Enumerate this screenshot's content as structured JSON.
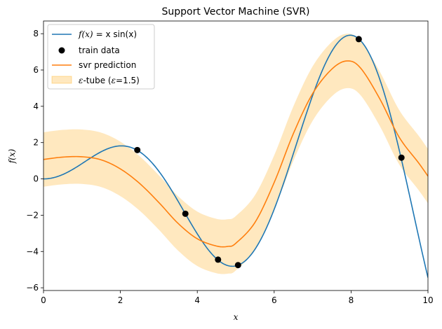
{
  "chart_data": {
    "type": "line",
    "title": "Support Vector Machine (SVR)",
    "xlabel": "x",
    "ylabel": "f(x)",
    "xlim": [
      0,
      10
    ],
    "ylim": [
      -6.15,
      8.7
    ],
    "x_ticks": [
      0,
      2,
      4,
      6,
      8,
      10
    ],
    "y_ticks": [
      -6,
      -4,
      -2,
      0,
      2,
      4,
      6,
      8
    ],
    "x_tick_labels": [
      "0",
      "2",
      "4",
      "6",
      "8",
      "10"
    ],
    "y_tick_labels": [
      "−6",
      "−4",
      "−2",
      "0",
      "2",
      "4",
      "6",
      "8"
    ],
    "grid": false,
    "legend_position": "upper-left",
    "epsilon": 1.5,
    "series": [
      {
        "name": "f(x) = x sin(x)",
        "kind": "line",
        "color": "#1f77b4",
        "function": "x*sin(x)"
      },
      {
        "name": "train data",
        "kind": "scatter",
        "color": "#000000",
        "x": [
          2.44,
          3.69,
          4.54,
          5.06,
          8.2,
          9.31
        ],
        "y": [
          1.59,
          -1.92,
          -4.45,
          -4.75,
          7.7,
          1.17
        ]
      },
      {
        "name": "svr prediction",
        "kind": "line",
        "color": "#ff7f0e",
        "x": [
          0,
          0.5,
          1.0,
          1.5,
          2.0,
          2.5,
          3.0,
          3.5,
          4.0,
          4.5,
          4.8,
          5.0,
          5.5,
          6.0,
          6.5,
          7.0,
          7.5,
          7.9,
          8.25,
          8.75,
          9.25,
          9.75,
          10.0
        ],
        "y": [
          1.07,
          1.2,
          1.22,
          1.05,
          0.55,
          -0.25,
          -1.3,
          -2.45,
          -3.3,
          -3.7,
          -3.72,
          -3.55,
          -2.4,
          -0.2,
          2.5,
          4.7,
          6.05,
          6.5,
          6.1,
          4.4,
          2.3,
          0.9,
          0.15
        ]
      },
      {
        "name": "ε-tube (ε=1.5)",
        "kind": "band",
        "color": "#ffa500"
      }
    ]
  },
  "legend": {
    "items": [
      {
        "label_text": "= x sin(x)",
        "label_prefix": "f(x)"
      },
      {
        "label_text": "train data"
      },
      {
        "label_text": "svr prediction"
      },
      {
        "label_text": "-tube (",
        "label_eps": "ε",
        "label_suffix": "=1.5)"
      }
    ]
  }
}
